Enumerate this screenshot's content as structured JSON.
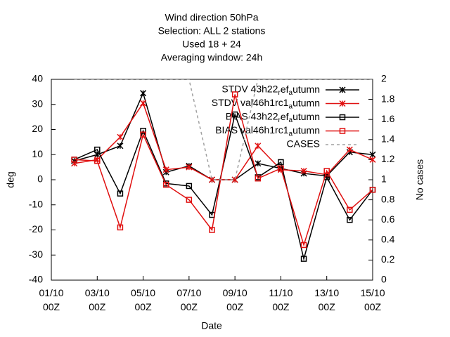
{
  "chart_data": {
    "type": "line",
    "title_lines": [
      "Wind direction 50hPa",
      "Selection: ALL       2 stations",
      "Used  18  + 24",
      "Averaging window: 24h"
    ],
    "x_label": "Date",
    "y_label": "deg",
    "y2_label": "No cases",
    "x": [
      2,
      3,
      4,
      5,
      6,
      7,
      8,
      9,
      10,
      11,
      12,
      13,
      14,
      15
    ],
    "xlim": [
      1,
      15
    ],
    "xticks": [
      {
        "value": 1,
        "label": "01/10 00Z"
      },
      {
        "value": 3,
        "label": "03/10 00Z"
      },
      {
        "value": 5,
        "label": "05/10 00Z"
      },
      {
        "value": 7,
        "label": "07/10 00Z"
      },
      {
        "value": 9,
        "label": "09/10 00Z"
      },
      {
        "value": 11,
        "label": "11/10 00Z"
      },
      {
        "value": 13,
        "label": "13/10 00Z"
      },
      {
        "value": 15,
        "label": "15/10 00Z"
      }
    ],
    "ylim": [
      -40,
      40
    ],
    "yticks": [
      -40,
      -30,
      -20,
      -10,
      0,
      10,
      20,
      30,
      40
    ],
    "y2lim": [
      0,
      2
    ],
    "y2ticks": [
      0,
      0.2,
      0.4,
      0.6,
      0.8,
      1,
      1.2,
      1.4,
      1.6,
      1.8,
      2
    ],
    "grid": false,
    "legend": "top-right",
    "series": [
      {
        "name": "STDV 43h22_ref_autumn",
        "color": "#000000",
        "marker": "cross",
        "values": [
          7.5,
          10,
          13.5,
          34.5,
          3,
          5.5,
          0,
          0,
          6.5,
          4.5,
          2.5,
          1.5,
          11,
          10
        ]
      },
      {
        "name": "STDV val46h1rc1_autumn",
        "color": "#e01010",
        "marker": "cross",
        "values": [
          6.5,
          8,
          17,
          30.5,
          4,
          5,
          0,
          0,
          13.5,
          4,
          3.5,
          2,
          12,
          8
        ]
      },
      {
        "name": "BIAS 43h22_ref_autumn",
        "color": "#000000",
        "marker": "square",
        "values": [
          8,
          12,
          -5.5,
          19.5,
          -1.5,
          -2.5,
          -14,
          26,
          1,
          7,
          -31.5,
          1,
          -16,
          -4
        ]
      },
      {
        "name": "BIAS val46h1rc1_autumn",
        "color": "#e01010",
        "marker": "square",
        "values": [
          8,
          7.5,
          -19,
          18,
          -2,
          -8,
          -20,
          34,
          0.5,
          4.5,
          -26,
          3.5,
          -12,
          -4
        ]
      },
      {
        "name": "CASES",
        "color": "#a0a0a0",
        "marker": "none",
        "dashed": true,
        "axis": "y2",
        "values": [
          2,
          2,
          2,
          2,
          2,
          2,
          1,
          1,
          2,
          2,
          2,
          2,
          2,
          2
        ]
      }
    ]
  }
}
